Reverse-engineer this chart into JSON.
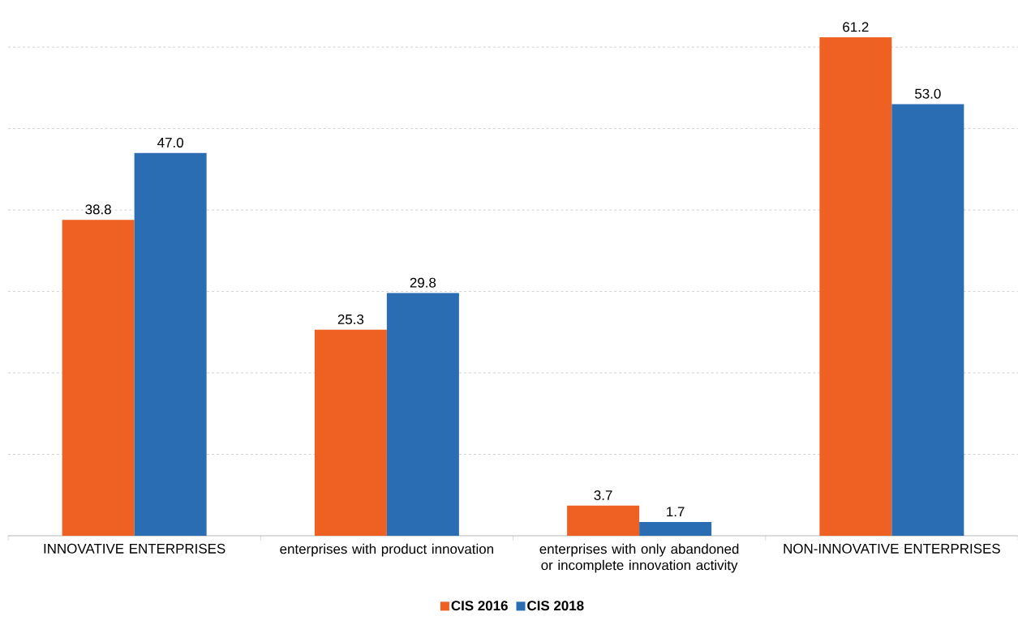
{
  "chart_data": {
    "type": "bar",
    "categories": [
      "INNOVATIVE ENTERPRISES",
      "enterprises with product innovation",
      "enterprises with only abandoned or incomplete innovation activity",
      "NON-INNOVATIVE ENTERPRISES"
    ],
    "series": [
      {
        "name": "CIS 2016",
        "color": "#ee6123",
        "values": [
          38.8,
          25.3,
          3.7,
          61.2
        ],
        "value_labels": [
          "38.8",
          "25.3",
          "3.7",
          "61.2"
        ]
      },
      {
        "name": "CIS 2018",
        "color": "#2a6db3",
        "values": [
          47.0,
          29.8,
          1.7,
          53.0
        ],
        "value_labels": [
          "47.0",
          "29.8",
          "1.7",
          "53.0"
        ]
      }
    ],
    "yticks": [
      {
        "value": 10,
        "label": null
      },
      {
        "value": 20,
        "label": null
      },
      {
        "value": 30,
        "label": null
      },
      {
        "value": 40,
        "label": null
      },
      {
        "value": 50,
        "label": null
      },
      {
        "value": 60,
        "label": null
      }
    ],
    "tick_labels": "x",
    "grid": "y",
    "legend": "bottom",
    "marker": "square"
  }
}
